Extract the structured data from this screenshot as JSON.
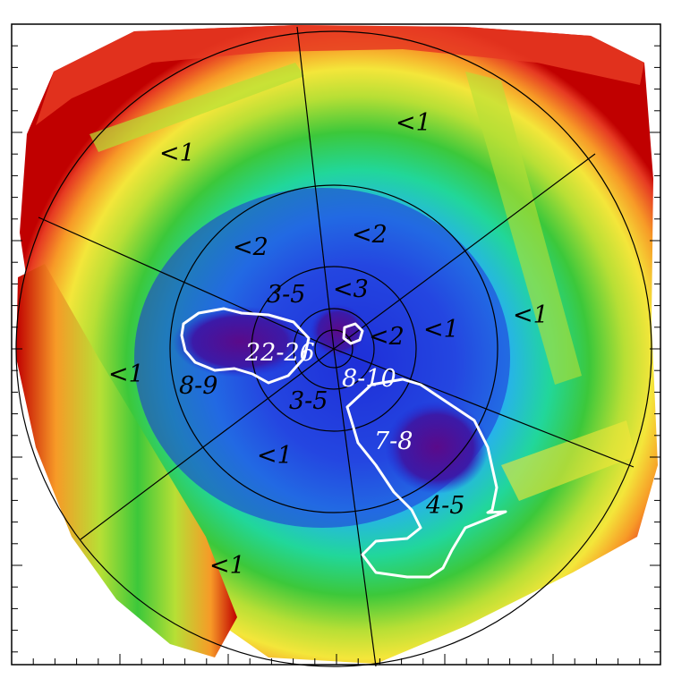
{
  "map": {
    "colors": {
      "frame": "#000000",
      "background": "#ffffff",
      "contour": "#ffffff",
      "label_dark": "#000000",
      "label_light": "#ffffff",
      "colorscale": [
        "#5a0a8a",
        "#1f2fd8",
        "#27b0f0",
        "#21d79a",
        "#3cc83a",
        "#b7df35",
        "#f4e63a",
        "#f79a27",
        "#e63a22",
        "#c00000"
      ]
    },
    "region_labels": [
      {
        "id": "outer-nw",
        "text": "<1",
        "tone": "dark"
      },
      {
        "id": "outer-n",
        "text": "<1",
        "tone": "dark"
      },
      {
        "id": "outer-ene",
        "text": "<1",
        "tone": "dark"
      },
      {
        "id": "mid-e",
        "text": "<1",
        "tone": "dark"
      },
      {
        "id": "outer-w",
        "text": "<1",
        "tone": "dark"
      },
      {
        "id": "mid-s",
        "text": "<1",
        "tone": "dark"
      },
      {
        "id": "outer-sw",
        "text": "<1",
        "tone": "dark"
      },
      {
        "id": "mid-nw",
        "text": "<2",
        "tone": "dark"
      },
      {
        "id": "mid-n",
        "text": "<2",
        "tone": "dark"
      },
      {
        "id": "inner-n",
        "text": "<3",
        "tone": "dark"
      },
      {
        "id": "inner-e",
        "text": "<2",
        "tone": "dark"
      },
      {
        "id": "inner-nw",
        "text": "3-5",
        "tone": "dark"
      },
      {
        "id": "inner-s",
        "text": "3-5",
        "tone": "dark"
      },
      {
        "id": "west-knot",
        "text": "8-9",
        "tone": "dark"
      },
      {
        "id": "center-w",
        "text": "22-26",
        "tone": "light"
      },
      {
        "id": "center-se",
        "text": "8-10",
        "tone": "light"
      },
      {
        "id": "se-knot",
        "text": "7-8",
        "tone": "light"
      },
      {
        "id": "se-tail",
        "text": "4-5",
        "tone": "dark"
      }
    ]
  }
}
